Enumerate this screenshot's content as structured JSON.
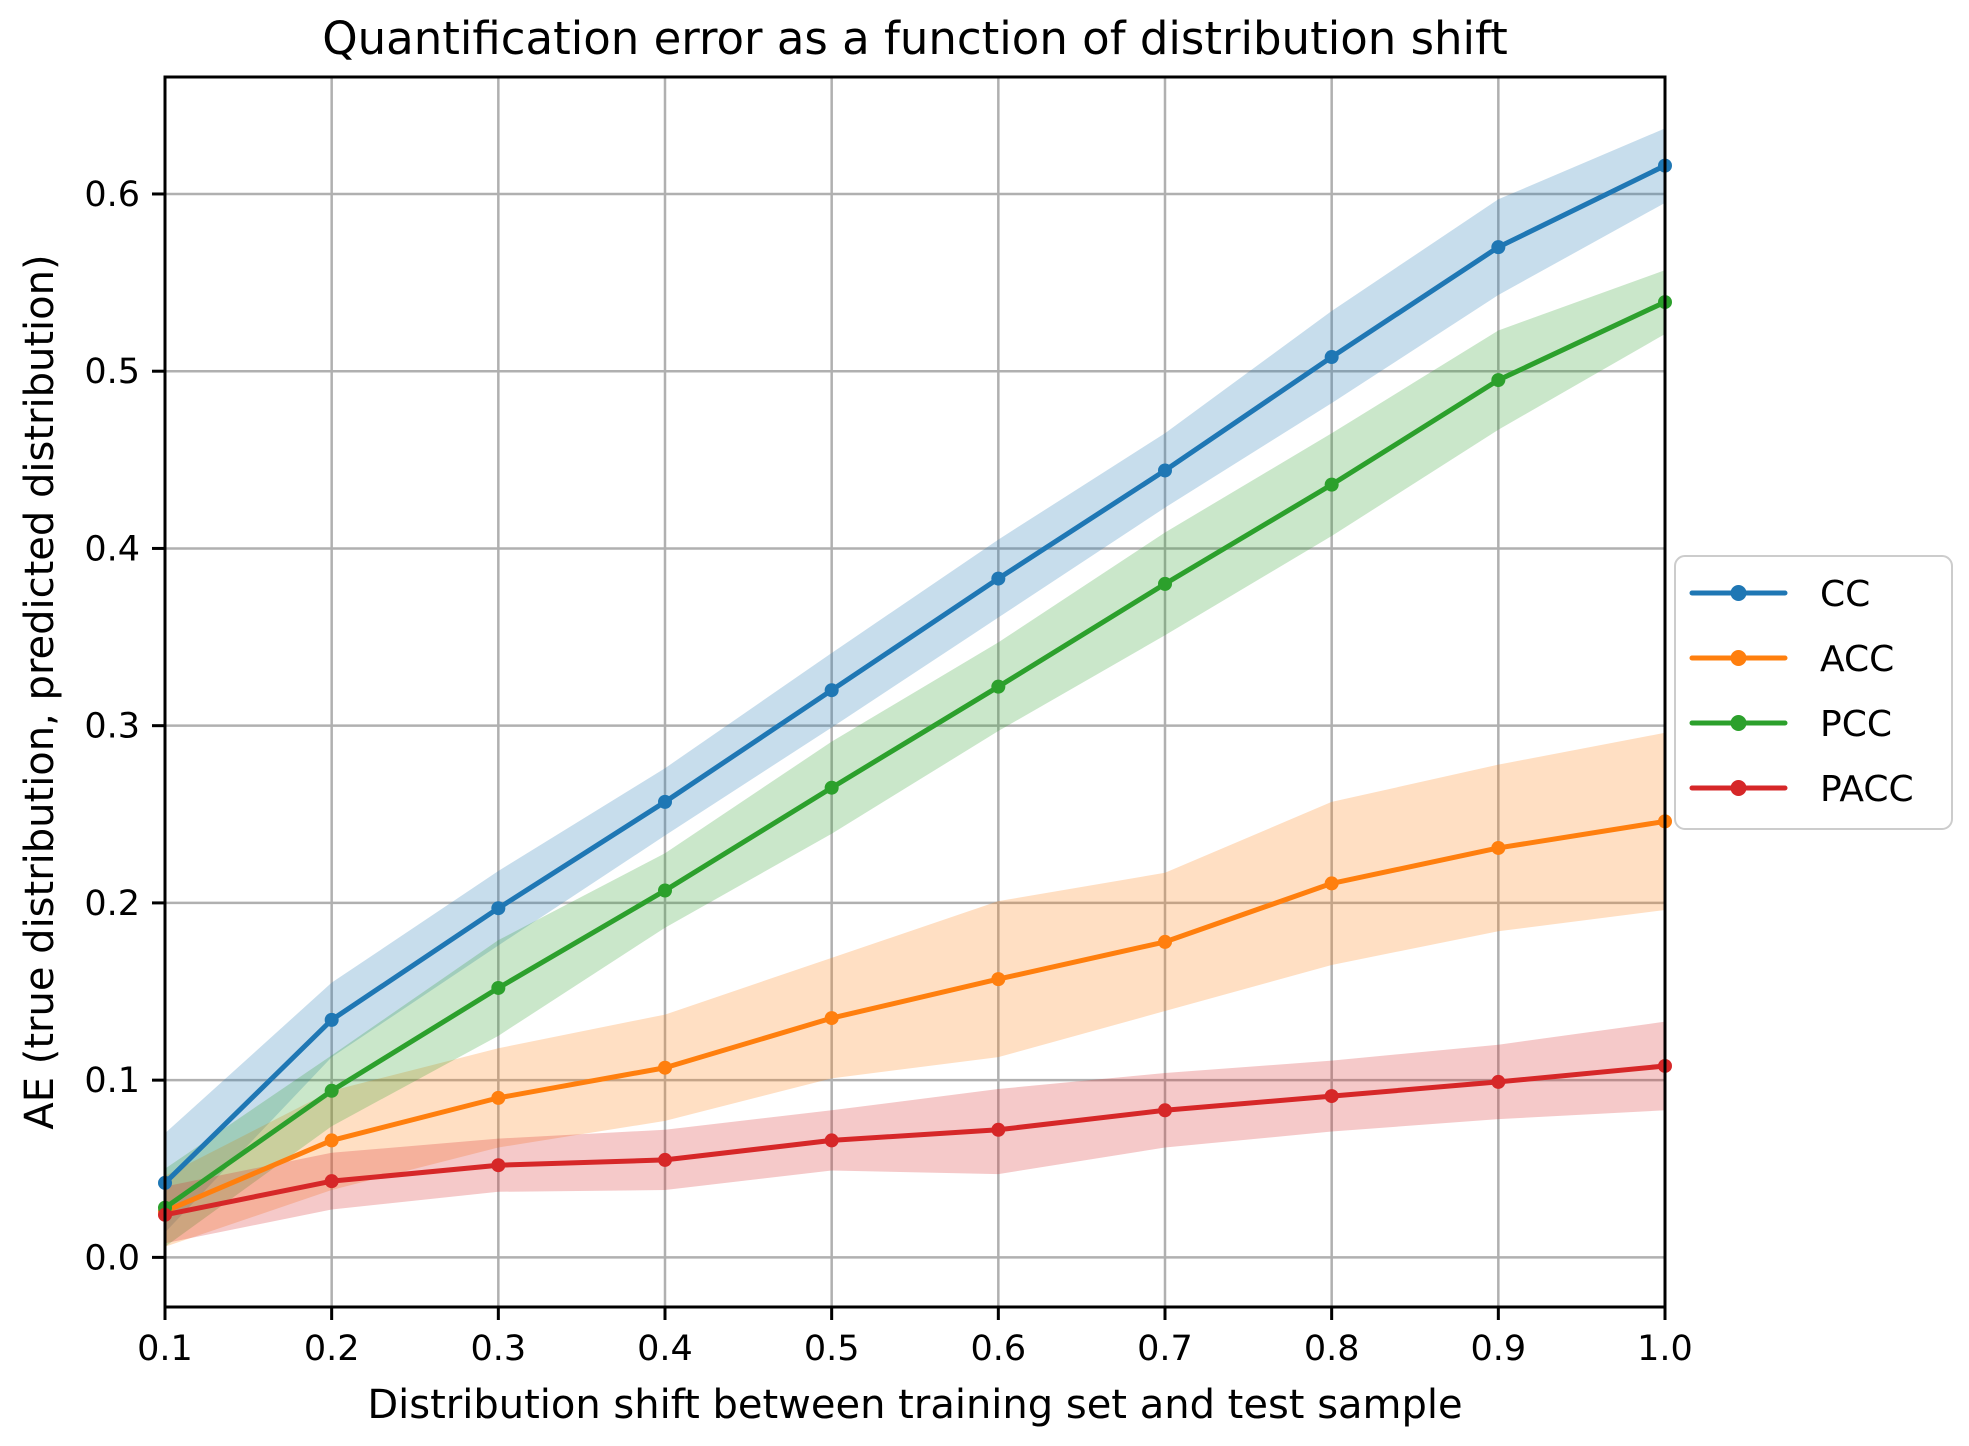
{
  "chart_data": {
    "type": "line",
    "title": "Quantification error as a function of distribution shift",
    "xlabel": "Distribution shift between training set and test sample",
    "ylabel": "AE (true distribution, predicted distribution)",
    "x": [
      0.1,
      0.2,
      0.3,
      0.4,
      0.5,
      0.6,
      0.7,
      0.8,
      0.9,
      1.0
    ],
    "xlim": [
      0.1,
      1.0
    ],
    "ylim": [
      -0.028,
      0.666
    ],
    "x_tick_labels": [
      "0.1",
      "0.2",
      "0.3",
      "0.4",
      "0.5",
      "0.6",
      "0.7",
      "0.8",
      "0.9",
      "1.0"
    ],
    "y_tick_labels": [
      "0.0",
      "0.1",
      "0.2",
      "0.3",
      "0.4",
      "0.5",
      "0.6"
    ],
    "grid": true,
    "grid_color": "#b0b0b0",
    "axis_color": "#000000",
    "marker": "circle",
    "band_alpha": 0.25,
    "legend": {
      "position": "right-outside",
      "border_color": "#cccccc",
      "background": "#ffffff"
    },
    "series": [
      {
        "name": "CC",
        "color": "#1f77b4",
        "values": [
          0.042,
          0.134,
          0.197,
          0.257,
          0.32,
          0.383,
          0.444,
          0.508,
          0.57,
          0.616
        ],
        "band_lower": [
          0.014,
          0.113,
          0.176,
          0.238,
          0.299,
          0.361,
          0.423,
          0.482,
          0.543,
          0.595
        ],
        "band_upper": [
          0.07,
          0.155,
          0.218,
          0.276,
          0.341,
          0.405,
          0.465,
          0.534,
          0.597,
          0.637
        ]
      },
      {
        "name": "ACC",
        "color": "#ff7f0e",
        "values": [
          0.026,
          0.066,
          0.09,
          0.107,
          0.135,
          0.157,
          0.178,
          0.211,
          0.231,
          0.246
        ],
        "band_lower": [
          0.006,
          0.038,
          0.062,
          0.077,
          0.101,
          0.113,
          0.139,
          0.165,
          0.184,
          0.196
        ],
        "band_upper": [
          0.046,
          0.094,
          0.118,
          0.137,
          0.169,
          0.201,
          0.217,
          0.257,
          0.278,
          0.296
        ]
      },
      {
        "name": "PCC",
        "color": "#2ca02c",
        "values": [
          0.028,
          0.094,
          0.152,
          0.207,
          0.265,
          0.322,
          0.38,
          0.436,
          0.495,
          0.539
        ],
        "band_lower": [
          0.006,
          0.074,
          0.125,
          0.186,
          0.239,
          0.297,
          0.351,
          0.407,
          0.467,
          0.521
        ],
        "band_upper": [
          0.05,
          0.114,
          0.179,
          0.228,
          0.291,
          0.347,
          0.409,
          0.465,
          0.523,
          0.557
        ]
      },
      {
        "name": "PACC",
        "color": "#d62728",
        "values": [
          0.024,
          0.043,
          0.052,
          0.055,
          0.066,
          0.072,
          0.083,
          0.091,
          0.099,
          0.108
        ],
        "band_lower": [
          0.008,
          0.027,
          0.037,
          0.038,
          0.049,
          0.047,
          0.062,
          0.071,
          0.078,
          0.083
        ],
        "band_upper": [
          0.04,
          0.059,
          0.067,
          0.072,
          0.083,
          0.095,
          0.104,
          0.111,
          0.12,
          0.133
        ]
      }
    ]
  }
}
